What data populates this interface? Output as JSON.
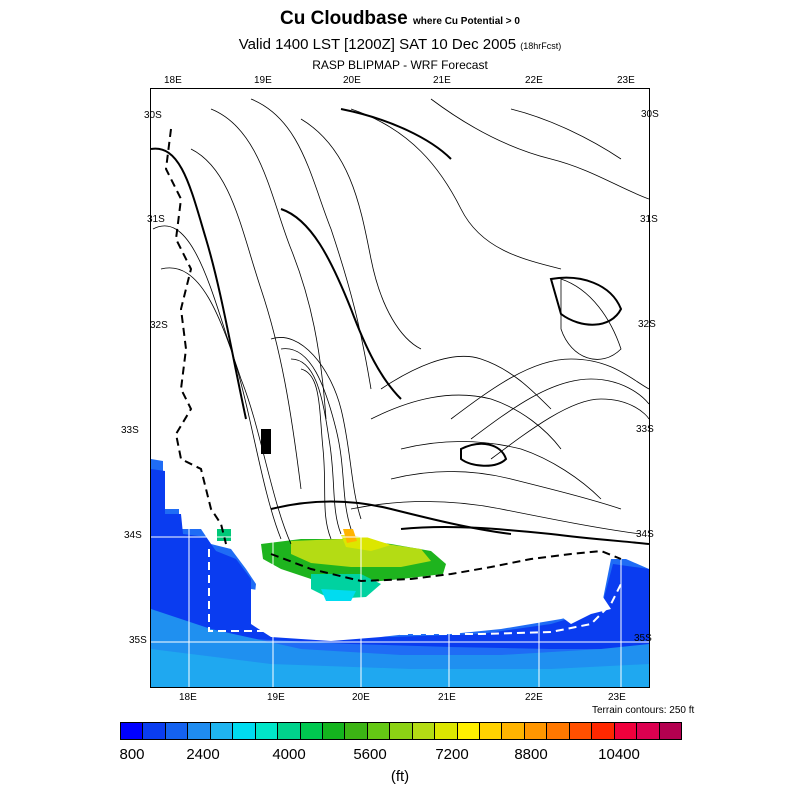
{
  "title": {
    "main": "Cu Cloudbase",
    "qualifier": "where Cu Potential > 0",
    "valid": "Valid 1400 LST [1200Z] SAT 10 Dec 2005",
    "forecast": "(18hrFcst)",
    "source": "RASP BLIPMAP - WRF Forecast"
  },
  "map": {
    "lon_top": [
      "18E",
      "19E",
      "20E",
      "21E",
      "22E",
      "23E"
    ],
    "lon_bottom": [
      "18E",
      "19E",
      "20E",
      "21E",
      "22E",
      "23E"
    ],
    "lat_left": [
      "30S",
      "31S",
      "32S",
      "33S",
      "34S",
      "35S"
    ],
    "lat_right": [
      "30S",
      "31S",
      "32S",
      "33S",
      "34S",
      "35S"
    ],
    "terrain_note": "Terrain contours: 250 ft"
  },
  "colorbar": {
    "colors": [
      "#0000ff",
      "#0a3df0",
      "#1462f0",
      "#1f8cf0",
      "#1fb4f0",
      "#00dcf0",
      "#00e6c8",
      "#00d28c",
      "#00c850",
      "#14b41e",
      "#3cb414",
      "#64c814",
      "#8cd214",
      "#b4dc14",
      "#dce600",
      "#fff000",
      "#ffd200",
      "#ffb400",
      "#ff9600",
      "#ff7800",
      "#ff5000",
      "#ff2800",
      "#f0003c",
      "#dc0050",
      "#b40050"
    ],
    "labels": [
      "800",
      "2400",
      "4000",
      "5600",
      "7200",
      "8800",
      "10400"
    ],
    "unit": "(ft)"
  }
}
